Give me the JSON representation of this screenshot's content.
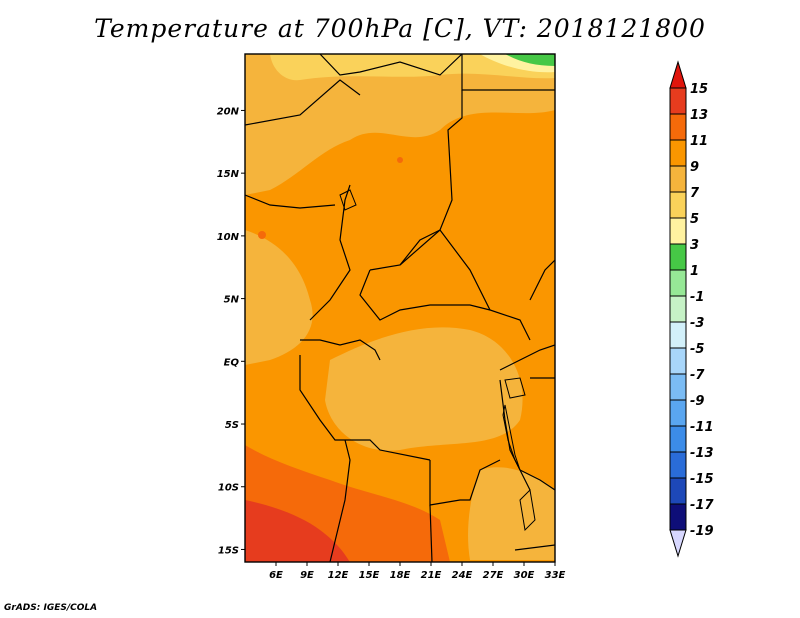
{
  "title": "Temperature at 700hPa [C], VT: 2018121800",
  "footer": "GrADS: IGES/COLA",
  "map": {
    "lon_range": [
      3,
      33
    ],
    "lat_range": [
      -16,
      24.5
    ],
    "lon_ticks": [
      "6E",
      "9E",
      "12E",
      "15E",
      "18E",
      "21E",
      "24E",
      "27E",
      "30E",
      "33E"
    ],
    "lon_tick_values": [
      6,
      9,
      12,
      15,
      18,
      21,
      24,
      27,
      30,
      33
    ],
    "lat_ticks": [
      "20N",
      "15N",
      "10N",
      "5N",
      "EQ",
      "5S",
      "10S",
      "15S"
    ],
    "lat_tick_values": [
      20,
      15,
      10,
      5,
      0,
      -5,
      -10,
      -15
    ]
  },
  "colorbar": {
    "labels": [
      "15",
      "13",
      "11",
      "9",
      "7",
      "5",
      "3",
      "1",
      "-1",
      "-3",
      "-5",
      "-7",
      "-9",
      "-11",
      "-13",
      "-15",
      "-17",
      "-19"
    ],
    "colors": [
      "#d8d8ff",
      "#0e0e78",
      "#1d48b8",
      "#2a6cd8",
      "#3c8ce8",
      "#5aa6f0",
      "#7bbcf4",
      "#a8d6fa",
      "#d2f0fa",
      "#c6f2c6",
      "#96e896",
      "#46c846",
      "#fff2a0",
      "#fad25a",
      "#f5b43c",
      "#fa9600",
      "#f56a0a",
      "#e63c1e",
      "#e0150c"
    ]
  },
  "chart_data": {
    "type": "heatmap",
    "title": "Temperature at 700hPa [C], VT: 2018121800",
    "variable": "Temperature at 700hPa",
    "units": "C",
    "valid_time": "2018121800",
    "x_range": [
      3,
      33
    ],
    "y_range": [
      -16,
      24.5
    ],
    "color_levels": [
      -19,
      -17,
      -15,
      -13,
      -11,
      -9,
      -7,
      -5,
      -3,
      -1,
      1,
      3,
      5,
      7,
      9,
      11,
      13,
      15
    ],
    "dominant_range": [
      7,
      13
    ],
    "regions": [
      {
        "area": "north (Sahara, 18N-24N)",
        "value_range": [
          7,
          11
        ]
      },
      {
        "area": "northeast corner (~24N, 30-33E)",
        "value_range": [
          3,
          7
        ]
      },
      {
        "area": "Chad and Sudan interior",
        "value_range": [
          9,
          11
        ]
      },
      {
        "area": "Congo basin (5S-5N)",
        "value_range": [
          7,
          11
        ]
      },
      {
        "area": "Angola south of 8S",
        "value_range": [
          11,
          13
        ]
      },
      {
        "area": "far southwest (~12S-16S, 3-12E)",
        "value_range": [
          13,
          15
        ]
      }
    ]
  }
}
